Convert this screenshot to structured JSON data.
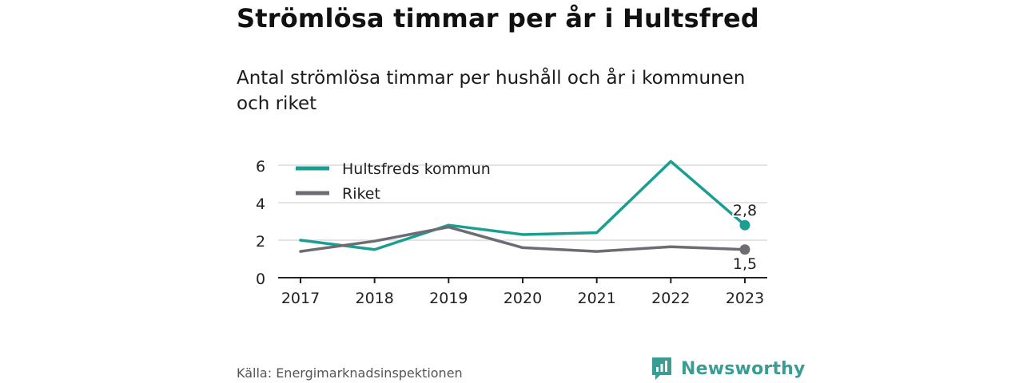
{
  "header": {
    "title": "Strömlösa timmar per år i Hultsfred",
    "subtitle": "Antal strömlösa timmar per hushåll och år i kommunen och riket"
  },
  "chart_data": {
    "type": "line",
    "x": [
      "2017",
      "2018",
      "2019",
      "2020",
      "2021",
      "2022",
      "2023"
    ],
    "series": [
      {
        "name": "Hultsfreds kommun",
        "color": "#1a9e92",
        "values": [
          2.0,
          1.5,
          2.8,
          2.3,
          2.4,
          6.2,
          2.8
        ],
        "end_label": "2,8"
      },
      {
        "name": "Riket",
        "color": "#6e6b72",
        "values": [
          1.4,
          1.95,
          2.7,
          1.6,
          1.4,
          1.65,
          1.5
        ],
        "end_label": "1,5"
      }
    ],
    "y_ticks": [
      "0",
      "2",
      "4",
      "6"
    ],
    "ylim": [
      0,
      6
    ],
    "grid": true,
    "legend_position": "top-left"
  },
  "footer": {
    "source": "Källa: Energimarknadsinspektionen",
    "brand": "Newsworthy",
    "brand_icon": "newsworthy-logo-icon"
  }
}
